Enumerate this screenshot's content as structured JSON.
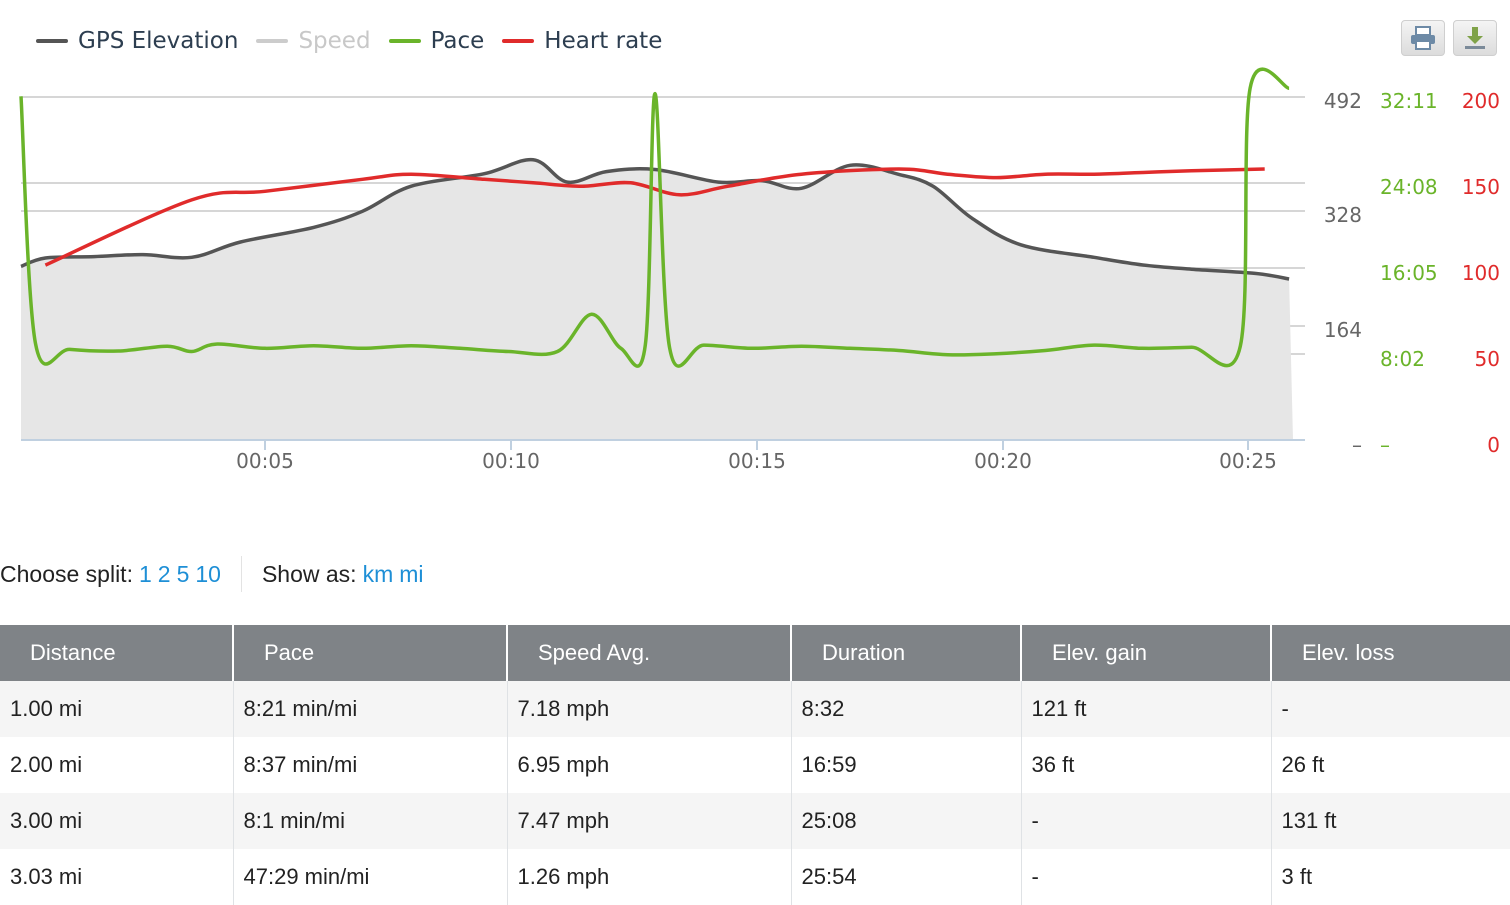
{
  "legend": [
    {
      "label": "GPS Elevation",
      "color": "#555555",
      "active": true
    },
    {
      "label": "Speed",
      "color": "#cccccc",
      "active": false
    },
    {
      "label": "Pace",
      "color": "#6ab42a",
      "active": true
    },
    {
      "label": "Heart rate",
      "color": "#e02b2b",
      "active": true
    }
  ],
  "toolbar": {
    "print_icon": "printer-icon",
    "download_icon": "download-icon"
  },
  "chart_data": {
    "type": "line",
    "x_ticks": [
      "00:05",
      "00:10",
      "00:15",
      "00:20",
      "00:25"
    ],
    "elevation_axis": {
      "ticks": [
        "492",
        "328",
        "164",
        "–"
      ],
      "color": "#555555"
    },
    "pace_axis": {
      "ticks": [
        "32:11",
        "24:08",
        "16:05",
        "8:02",
        "–"
      ],
      "color": "#6ab42a"
    },
    "hr_axis": {
      "ticks": [
        "200",
        "150",
        "100",
        "50",
        "0"
      ],
      "color": "#e02b2b"
    },
    "series": [
      {
        "name": "GPS Elevation",
        "unit": "ft",
        "color": "#555555",
        "fill": "#e6e6e6",
        "points": [
          [
            0,
            249
          ],
          [
            0.5,
            261
          ],
          [
            1.5,
            263
          ],
          [
            2.5,
            266
          ],
          [
            3.5,
            262
          ],
          [
            4.5,
            284
          ],
          [
            6,
            305
          ],
          [
            7,
            328
          ],
          [
            8,
            364
          ],
          [
            9.5,
            382
          ],
          [
            10.5,
            402
          ],
          [
            11.2,
            370
          ],
          [
            12,
            385
          ],
          [
            13,
            388
          ],
          [
            14.3,
            370
          ],
          [
            15.2,
            372
          ],
          [
            16,
            361
          ],
          [
            17,
            394
          ],
          [
            18,
            381
          ],
          [
            18.7,
            364
          ],
          [
            19.5,
            318
          ],
          [
            20.5,
            280
          ],
          [
            22,
            262
          ],
          [
            23,
            251
          ],
          [
            24,
            245
          ],
          [
            25.3,
            239
          ],
          [
            26,
            231
          ]
        ]
      },
      {
        "name": "Pace",
        "unit": "min/mi",
        "color": "#6ab42a",
        "points": [
          [
            0,
            32.25
          ],
          [
            0.3,
            9.0
          ],
          [
            1,
            8.5
          ],
          [
            2,
            8.35
          ],
          [
            3,
            8.8
          ],
          [
            3.5,
            8.3
          ],
          [
            4,
            9.0
          ],
          [
            5,
            8.6
          ],
          [
            6,
            8.85
          ],
          [
            7,
            8.6
          ],
          [
            8,
            8.85
          ],
          [
            9,
            8.6
          ],
          [
            10,
            8.3
          ],
          [
            11,
            8.3
          ],
          [
            11.7,
            11.8
          ],
          [
            12.3,
            8.6
          ],
          [
            12.8,
            8.9
          ],
          [
            13,
            32.5
          ],
          [
            13.3,
            8.6
          ],
          [
            14,
            8.9
          ],
          [
            15,
            8.6
          ],
          [
            16,
            8.8
          ],
          [
            17,
            8.6
          ],
          [
            18,
            8.4
          ],
          [
            19,
            8.0
          ],
          [
            20,
            8.1
          ],
          [
            21,
            8.4
          ],
          [
            22,
            8.9
          ],
          [
            23,
            8.6
          ],
          [
            24,
            8.7
          ],
          [
            25,
            8.8
          ],
          [
            25.2,
            33.0
          ],
          [
            26,
            33.0
          ]
        ]
      },
      {
        "name": "Heart rate",
        "unit": "bpm",
        "color": "#e02b2b",
        "points": [
          [
            0.5,
            102
          ],
          [
            3.5,
            140
          ],
          [
            5,
            145
          ],
          [
            7,
            152
          ],
          [
            8,
            155
          ],
          [
            9.5,
            152
          ],
          [
            10.5,
            150
          ],
          [
            11.5,
            148
          ],
          [
            12.5,
            150
          ],
          [
            13.5,
            143
          ],
          [
            14.5,
            148
          ],
          [
            16,
            155
          ],
          [
            18,
            158
          ],
          [
            19,
            155
          ],
          [
            20,
            153
          ],
          [
            21,
            155
          ],
          [
            22,
            155
          ],
          [
            23,
            156
          ],
          [
            24,
            157
          ],
          [
            25.5,
            158
          ]
        ]
      }
    ]
  },
  "controls": {
    "split_label": "Choose split:",
    "split_options": [
      "1",
      "2",
      "5",
      "10"
    ],
    "show_label": "Show as:",
    "unit_options": [
      "km",
      "mi"
    ]
  },
  "table": {
    "headers": [
      "Distance",
      "Pace",
      "Speed Avg.",
      "Duration",
      "Elev. gain",
      "Elev. loss"
    ],
    "rows": [
      [
        "1.00 mi",
        "8:21 min/mi",
        "7.18 mph",
        "8:32",
        "121 ft",
        "-"
      ],
      [
        "2.00 mi",
        "8:37 min/mi",
        "6.95 mph",
        "16:59",
        "36 ft",
        "26 ft"
      ],
      [
        "3.00 mi",
        "8:1 min/mi",
        "7.47 mph",
        "25:08",
        "-",
        "131 ft"
      ],
      [
        "3.03 mi",
        "47:29 min/mi",
        "1.26 mph",
        "25:54",
        "-",
        "3 ft"
      ]
    ]
  }
}
